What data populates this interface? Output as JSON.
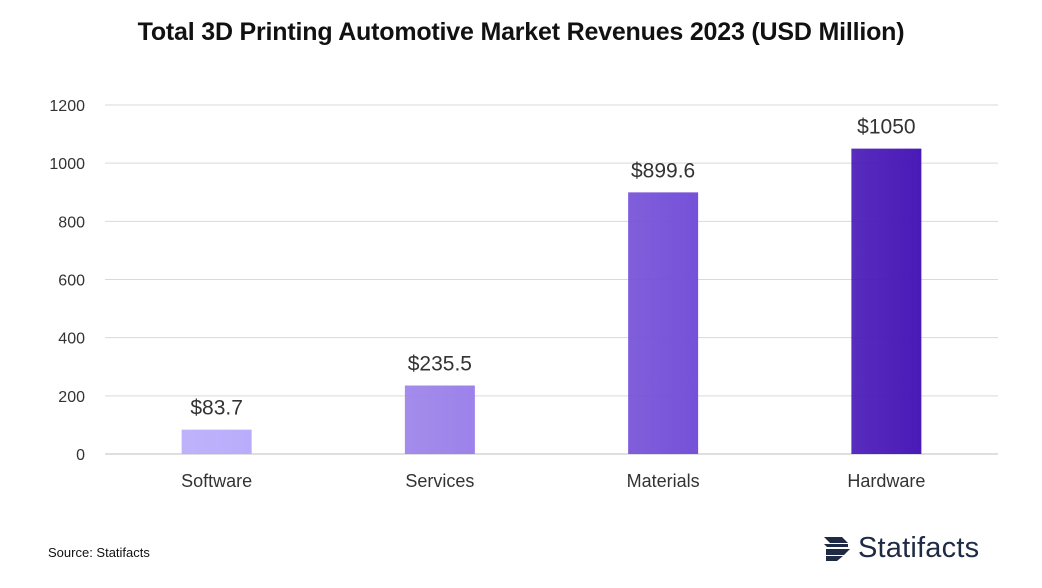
{
  "chart_data": {
    "type": "bar",
    "title": "Total 3D Printing Automotive Market Revenues 2023 (USD Million)",
    "categories": [
      "Software",
      "Services",
      "Materials",
      "Hardware"
    ],
    "values": [
      83.7,
      235.5,
      899.6,
      1050
    ],
    "data_labels": [
      "$83.7",
      "$235.5",
      "$899.6",
      "$1050"
    ],
    "colors": [
      "#b9acfb",
      "#9c82ea",
      "#7551d8",
      "#4a1ab8"
    ],
    "ylim": [
      0,
      1200
    ],
    "yticks": [
      0,
      200,
      400,
      600,
      800,
      1000,
      1200
    ],
    "grid": true,
    "gridline_color": "#d9d9d9",
    "xlabel": "",
    "ylabel": ""
  },
  "footer": {
    "source": "Source: Statifacts",
    "brand": "Statifacts",
    "brand_icon": "statifacts-logo-icon"
  }
}
